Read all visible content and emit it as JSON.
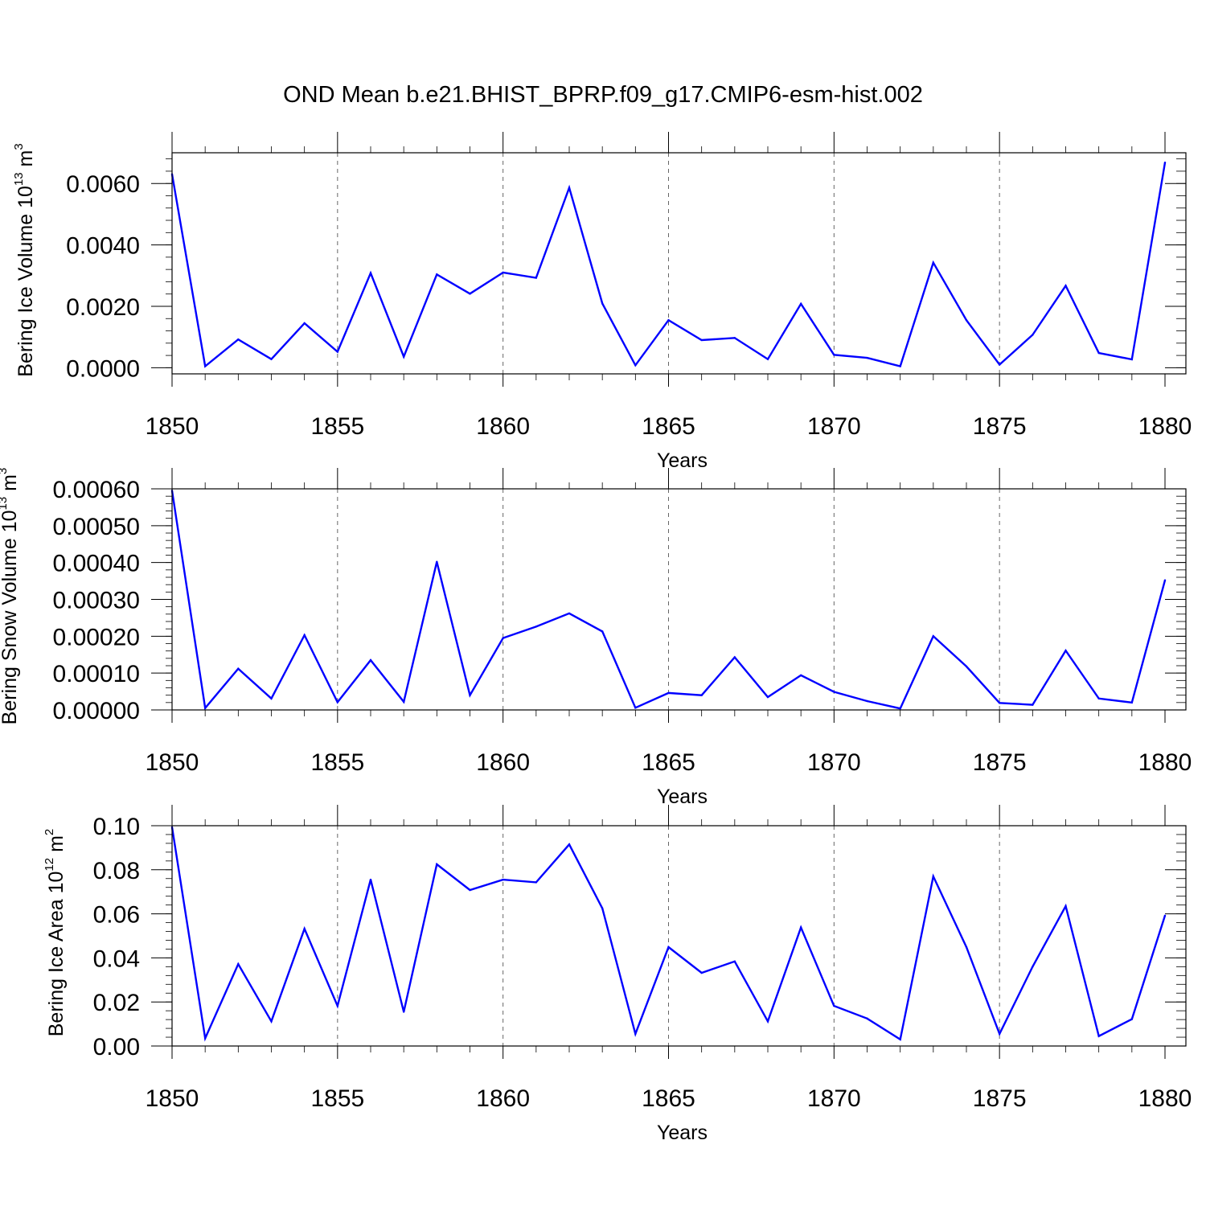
{
  "title": "OND Mean b.e21.BHIST_BPRP.f09_g17.CMIP6-esm-hist.002",
  "chart_data": [
    {
      "type": "line",
      "ylabel": {
        "base": "Bering Ice Volume 10",
        "exp": "13",
        "unit_base": " m",
        "unit_exp": "3"
      },
      "xlabel": "Years",
      "xlim": [
        1850,
        1880
      ],
      "ylim": [
        -0.0002,
        0.007
      ],
      "yticks": [
        0.0,
        0.002,
        0.004,
        0.006
      ],
      "ytick_labels": [
        "0.0000",
        "0.0020",
        "0.0040",
        "0.0060"
      ],
      "yminor_step": 0.0004,
      "xticks": [
        1850,
        1855,
        1860,
        1865,
        1870,
        1875,
        1880
      ],
      "xtick_labels": [
        "1850",
        "1855",
        "1860",
        "1865",
        "1870",
        "1875",
        "1880"
      ],
      "grid": "x-dashed",
      "series": [
        {
          "name": "Bering Ice Volume",
          "color": "#0000ff",
          "x": [
            1850,
            1851,
            1852,
            1853,
            1854,
            1855,
            1856,
            1857,
            1858,
            1859,
            1860,
            1861,
            1862,
            1863,
            1864,
            1865,
            1866,
            1867,
            1868,
            1869,
            1870,
            1871,
            1872,
            1873,
            1874,
            1875,
            1876,
            1877,
            1878,
            1879,
            1880
          ],
          "values": [
            0.0063,
            5e-05,
            0.00092,
            0.00028,
            0.00145,
            0.00052,
            0.00308,
            0.00036,
            0.00304,
            0.00241,
            0.0031,
            0.00293,
            0.00586,
            0.00209,
            8e-05,
            0.00155,
            0.0009,
            0.00097,
            0.00028,
            0.00208,
            0.00042,
            0.00032,
            5e-05,
            0.00342,
            0.00155,
            0.0001,
            0.00107,
            0.00267,
            0.00048,
            0.00027,
            0.00668
          ]
        }
      ]
    },
    {
      "type": "line",
      "ylabel": {
        "base": "Bering Snow Volume 10",
        "exp": "13",
        "unit_base": " m",
        "unit_exp": "3"
      },
      "xlabel": "Years",
      "xlim": [
        1850,
        1880
      ],
      "ylim": [
        0.0,
        0.0006
      ],
      "yticks": [
        0.0,
        0.0001,
        0.0002,
        0.0003,
        0.0004,
        0.0005,
        0.0006
      ],
      "ytick_labels": [
        "0.00000",
        "0.00010",
        "0.00020",
        "0.00030",
        "0.00040",
        "0.00050",
        "0.00060"
      ],
      "yminor_step": 2e-05,
      "xticks": [
        1850,
        1855,
        1860,
        1865,
        1870,
        1875,
        1880
      ],
      "xtick_labels": [
        "1850",
        "1855",
        "1860",
        "1865",
        "1870",
        "1875",
        "1880"
      ],
      "grid": "x-dashed",
      "series": [
        {
          "name": "Bering Snow Volume",
          "color": "#0000ff",
          "x": [
            1850,
            1851,
            1852,
            1853,
            1854,
            1855,
            1856,
            1857,
            1858,
            1859,
            1860,
            1861,
            1862,
            1863,
            1864,
            1865,
            1866,
            1867,
            1868,
            1869,
            1870,
            1871,
            1872,
            1873,
            1874,
            1875,
            1876,
            1877,
            1878,
            1879,
            1880
          ],
          "values": [
            0.000595,
            5e-06,
            0.000112,
            3.1e-05,
            0.000203,
            2.1e-05,
            0.000135,
            2.2e-05,
            0.000402,
            4e-05,
            0.000195,
            0.000226,
            0.000262,
            0.000213,
            6e-06,
            4.6e-05,
            4e-05,
            0.000143,
            3.5e-05,
            9.4e-05,
            4.9e-05,
            2.4e-05,
            4e-06,
            0.0002,
            0.000118,
            1.9e-05,
            1.4e-05,
            0.000161,
            3.1e-05,
            2e-05,
            0.000352
          ]
        }
      ]
    },
    {
      "type": "line",
      "ylabel": {
        "base": "Bering Ice Area 10",
        "exp": "12",
        "unit_base": " m",
        "unit_exp": "2"
      },
      "xlabel": "Years",
      "xlim": [
        1850,
        1880
      ],
      "ylim": [
        0.0,
        0.1
      ],
      "yticks": [
        0.0,
        0.02,
        0.04,
        0.06,
        0.08,
        0.1
      ],
      "ytick_labels": [
        "0.00",
        "0.02",
        "0.04",
        "0.06",
        "0.08",
        "0.10"
      ],
      "yminor_step": 0.004,
      "xticks": [
        1850,
        1855,
        1860,
        1865,
        1870,
        1875,
        1880
      ],
      "xtick_labels": [
        "1850",
        "1855",
        "1860",
        "1865",
        "1870",
        "1875",
        "1880"
      ],
      "grid": "x-dashed",
      "series": [
        {
          "name": "Bering Ice Area",
          "color": "#0000ff",
          "x": [
            1850,
            1851,
            1852,
            1853,
            1854,
            1855,
            1856,
            1857,
            1858,
            1859,
            1860,
            1861,
            1862,
            1863,
            1864,
            1865,
            1866,
            1867,
            1868,
            1869,
            1870,
            1871,
            1872,
            1873,
            1874,
            1875,
            1876,
            1877,
            1878,
            1879,
            1880
          ],
          "values": [
            0.0993,
            0.0035,
            0.0372,
            0.0112,
            0.0532,
            0.0182,
            0.0755,
            0.0155,
            0.0825,
            0.0708,
            0.0755,
            0.0743,
            0.0915,
            0.0625,
            0.0055,
            0.0449,
            0.0332,
            0.0384,
            0.0112,
            0.0538,
            0.0182,
            0.0125,
            0.003,
            0.077,
            0.0449,
            0.0055,
            0.036,
            0.0635,
            0.0045,
            0.0122,
            0.0592
          ]
        }
      ]
    }
  ]
}
